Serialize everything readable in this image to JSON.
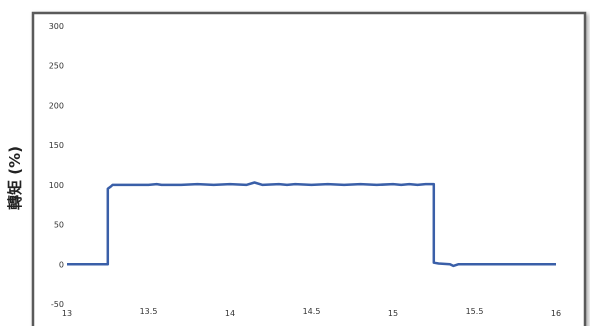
{
  "chart_data": {
    "type": "line",
    "title": "",
    "xlabel": "",
    "ylabel": "轉矩 (%)",
    "xlim": [
      13,
      16
    ],
    "ylim": [
      -50,
      300
    ],
    "x_ticks": [
      "13",
      "13.5",
      "14",
      "14.5",
      "15",
      "15.5",
      "16"
    ],
    "y_ticks": [
      "300",
      "250",
      "200",
      "150",
      "100",
      "50",
      "0",
      "-50"
    ],
    "grid": false,
    "legend": "none",
    "line_color": "#3a5fa8",
    "series": [
      {
        "x": [
          13.0,
          13.25,
          13.25,
          13.27,
          13.28,
          13.5,
          13.55,
          13.58,
          13.7,
          13.8,
          13.9,
          14.0,
          14.1,
          14.15,
          14.2,
          14.3,
          14.35,
          14.4,
          14.5,
          14.6,
          14.7,
          14.8,
          14.9,
          15.0,
          15.05,
          15.1,
          15.15,
          15.2,
          15.25,
          15.25,
          15.28,
          15.35,
          15.37,
          15.4,
          15.6,
          15.8,
          16.0
        ],
        "y": [
          0,
          0,
          95,
          98,
          100,
          100,
          101,
          100,
          100,
          101,
          100,
          101,
          100,
          103,
          100,
          101,
          100,
          101,
          100,
          101,
          100,
          101,
          100,
          101,
          100,
          101,
          100,
          101,
          101,
          2,
          1,
          0,
          -2,
          0,
          0,
          0,
          0
        ]
      }
    ]
  }
}
